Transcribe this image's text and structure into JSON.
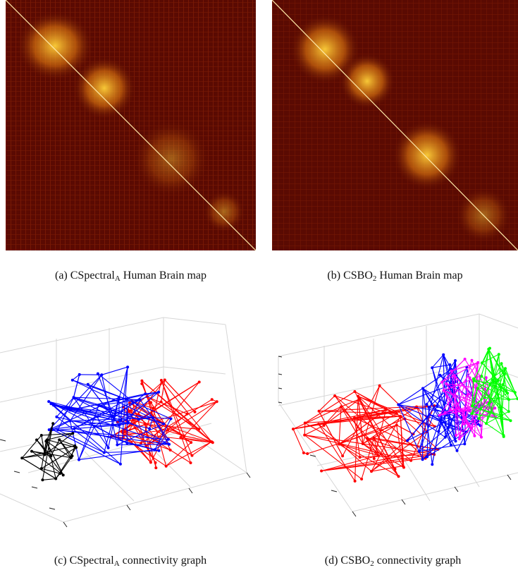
{
  "panels": [
    {
      "id": "a",
      "caption_prefix": "(a) CSpectral",
      "caption_sub": "A",
      "caption_suffix": " Human Brain map"
    },
    {
      "id": "b",
      "caption_prefix": "(b) CSBO",
      "caption_sub": "2",
      "caption_suffix": " Human Brain map"
    },
    {
      "id": "c",
      "caption_prefix": "(c) CSpectral",
      "caption_sub": "A",
      "caption_suffix": " connectivity graph"
    },
    {
      "id": "d",
      "caption_prefix": "(d) CSBO",
      "caption_sub": "2",
      "caption_suffix": " connectivity graph"
    }
  ],
  "colors": {
    "heat_background": "#5a0a02",
    "heat_hot": "#ffd23a",
    "cluster_red": "#ff0000",
    "cluster_blue": "#0000ff",
    "cluster_black": "#000000",
    "cluster_magenta": "#ff00ff",
    "cluster_green": "#00ff00",
    "grid": "#d6d6d6"
  }
}
